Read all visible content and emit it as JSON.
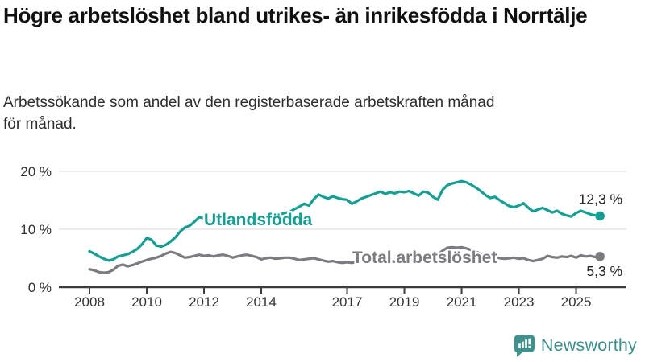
{
  "chart_data": {
    "type": "line",
    "title": "Högre arbetslöshet bland utrikes- än inrikesfödda i Norrtälje",
    "subtitle": {
      "line1": "Arbetssökande som andel av den registerbaserade arbetskraften månad",
      "line2": "för månad."
    },
    "grid": true,
    "legend_position": "inline-labels",
    "xlim": [
      2008,
      2025.83
    ],
    "ylim": [
      0,
      20
    ],
    "x_step_years": 0.166667,
    "x_ticks": [
      {
        "year": 2008,
        "label": "2008"
      },
      {
        "year": 2010,
        "label": "2010"
      },
      {
        "year": 2012,
        "label": "2012"
      },
      {
        "year": 2014,
        "label": "2014"
      },
      {
        "year": 2017,
        "label": "2017"
      },
      {
        "year": 2019,
        "label": "2019"
      },
      {
        "year": 2021,
        "label": "2021"
      },
      {
        "year": 2023,
        "label": "2023"
      },
      {
        "year": 2025,
        "label": "2025"
      }
    ],
    "y_ticks": [
      {
        "value": 0,
        "label": "0 %"
      },
      {
        "value": 10,
        "label": "10 %"
      },
      {
        "value": 20,
        "label": "20 %"
      }
    ],
    "series": [
      {
        "name": "Utlandsfödda",
        "color": "#12a093",
        "end_label": "12,3 %",
        "values": [
          6.2,
          5.8,
          5.3,
          4.9,
          4.6,
          4.8,
          5.3,
          5.5,
          5.7,
          6.1,
          6.6,
          7.4,
          8.5,
          8.2,
          7.2,
          7.0,
          7.3,
          7.9,
          8.6,
          9.6,
          10.3,
          10.6,
          11.3,
          12.1,
          11.9,
          11.4,
          11.2,
          11.5,
          11.7,
          11.5,
          11.3,
          11.5,
          11.4,
          11.6,
          11.9,
          12.1,
          12.0,
          12.2,
          12.1,
          12.4,
          12.6,
          12.8,
          13.0,
          13.5,
          13.9,
          14.4,
          14.1,
          15.2,
          16.0,
          15.6,
          15.3,
          15.7,
          15.4,
          15.2,
          15.1,
          14.4,
          14.8,
          15.3,
          15.6,
          15.9,
          16.2,
          16.5,
          16.1,
          16.4,
          16.2,
          16.5,
          16.4,
          16.6,
          16.2,
          15.8,
          16.5,
          16.3,
          15.6,
          15.1,
          16.8,
          17.6,
          17.9,
          18.1,
          18.3,
          18.1,
          17.7,
          17.2,
          16.6,
          15.9,
          15.4,
          15.6,
          15.0,
          14.5,
          14.0,
          13.8,
          14.1,
          14.5,
          13.7,
          13.1,
          13.4,
          13.7,
          13.3,
          12.9,
          13.2,
          12.7,
          12.4,
          12.2,
          12.8,
          13.2,
          12.9,
          12.6,
          12.4,
          12.3
        ]
      },
      {
        "name": "Total arbetslöshet",
        "color": "#7b7b80",
        "end_label": "5,3 %",
        "values": [
          3.1,
          2.9,
          2.6,
          2.5,
          2.6,
          3.0,
          3.7,
          3.9,
          3.6,
          3.8,
          4.1,
          4.4,
          4.7,
          4.9,
          5.1,
          5.4,
          5.8,
          6.1,
          5.9,
          5.5,
          5.1,
          5.2,
          5.4,
          5.6,
          5.4,
          5.5,
          5.3,
          5.5,
          5.6,
          5.4,
          5.1,
          5.3,
          5.5,
          5.6,
          5.4,
          5.2,
          4.8,
          5.0,
          5.1,
          4.9,
          5.0,
          5.1,
          5.1,
          4.9,
          4.7,
          4.8,
          4.9,
          5.0,
          4.8,
          4.6,
          4.4,
          4.5,
          4.3,
          4.2,
          4.3,
          4.2,
          4.4,
          4.6,
          4.5,
          4.7,
          4.6,
          4.4,
          4.3,
          4.5,
          4.4,
          4.6,
          4.5,
          4.7,
          4.6,
          4.8,
          5.0,
          5.2,
          5.4,
          5.6,
          6.3,
          6.8,
          6.9,
          6.8,
          6.9,
          6.7,
          6.4,
          6.1,
          5.8,
          5.5,
          5.3,
          5.2,
          5.0,
          4.9,
          5.0,
          5.1,
          4.9,
          5.0,
          4.7,
          4.5,
          4.7,
          4.9,
          5.4,
          5.2,
          5.1,
          5.3,
          5.2,
          5.4,
          5.1,
          5.5,
          5.3,
          5.4,
          5.2,
          5.3
        ]
      }
    ]
  },
  "footer": {
    "brand": "Newsworthy",
    "brand_color": "#3d8e8b",
    "logo_icon": "bar-chart-speech-bubble-icon",
    "logo_color": "#3f918e"
  }
}
